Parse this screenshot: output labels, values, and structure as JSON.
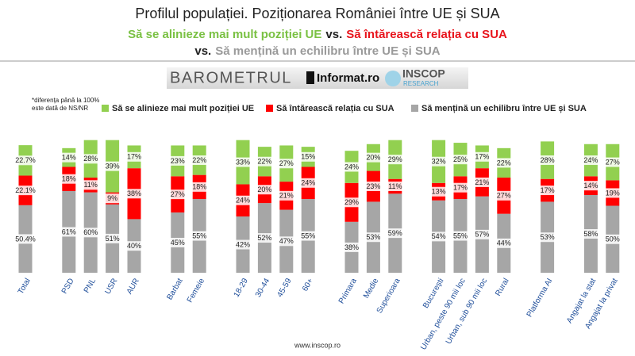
{
  "header": {
    "title": "Profilul populației. Poziționarea României între UE și SUA",
    "line2": [
      {
        "text": "Să se alinieze mai mult poziției UE",
        "color": "#7ac143"
      },
      {
        "text": "vs.",
        "color": "#222222"
      },
      {
        "text": "Să întărească relația cu SUA",
        "color": "#e8141c"
      }
    ],
    "line3": [
      {
        "text": "vs.",
        "color": "#222222"
      },
      {
        "text": "Să mențină un echilibru între UE și SUA",
        "color": "#9a9a9a"
      }
    ]
  },
  "logos": {
    "barometer": "BAROMETRUL",
    "partner": "Informat.ro",
    "company": "INSCOP",
    "company_sub": "RESEARCH"
  },
  "note": [
    "*diferența până la 100%",
    "este dată de NS/NR"
  ],
  "footer": "www.inscop.ro",
  "chart_data": {
    "type": "bar",
    "stacked": true,
    "categories": [
      "Total",
      "PSD",
      "PNL",
      "USR",
      "AUR",
      "Barbat",
      "Femeie",
      "18-29",
      "30-44",
      "45-59",
      "60+",
      "Primara",
      "Medie",
      "Superioara",
      "București",
      "Urban, peste 90 mii loc",
      "Urban, sub 90 mii loc",
      "Rural",
      "Platforma AI",
      "Angajat la stat",
      "Angajat la privat"
    ],
    "series": [
      {
        "name": "Să se alinieze mai mult poziției UE",
        "color": "#92d050",
        "values": [
          22.7,
          14,
          28,
          39,
          17,
          23,
          22,
          33,
          22,
          27,
          15,
          24,
          20,
          29,
          32,
          25,
          17,
          22,
          28,
          24,
          27
        ],
        "value_labels": [
          "22.7%",
          "14%",
          "28%",
          "39%",
          "17%",
          "23%",
          "22%",
          "33%",
          "22%",
          "27%",
          "15%",
          "24%",
          "20%",
          "29%",
          "32%",
          "25%",
          "17%",
          "22%",
          "28%",
          "24%",
          "27%"
        ]
      },
      {
        "name": "Să întărească relația cu SUA",
        "color": "#ff0000",
        "values": [
          22.1,
          18,
          11,
          9,
          38,
          27,
          18,
          24,
          20,
          21,
          24,
          29,
          23,
          11,
          13,
          17,
          21,
          27,
          17,
          14,
          19
        ],
        "value_labels": [
          "22.1%",
          "18%",
          "11%",
          "9%",
          "38%",
          "27%",
          "18%",
          "24%",
          "20%",
          "21%",
          "24%",
          "29%",
          "23%",
          "11%",
          "13%",
          "17%",
          "21%",
          "27%",
          "17%",
          "14%",
          "19%"
        ]
      },
      {
        "name": "Să mențină un echilibru între UE și SUA",
        "color": "#a6a6a6",
        "values": [
          50.4,
          61,
          60,
          51,
          40,
          45,
          55,
          42,
          52,
          47,
          55,
          38,
          53,
          59,
          54,
          55,
          57,
          44,
          53,
          58,
          50
        ],
        "value_labels": [
          "50.4%",
          "61%",
          "60%",
          "51%",
          "40%",
          "45%",
          "55%",
          "42%",
          "52%",
          "47%",
          "55%",
          "38%",
          "53%",
          "59%",
          "54%",
          "55%",
          "57%",
          "44%",
          "53%",
          "58%",
          "50%"
        ]
      }
    ]
  }
}
